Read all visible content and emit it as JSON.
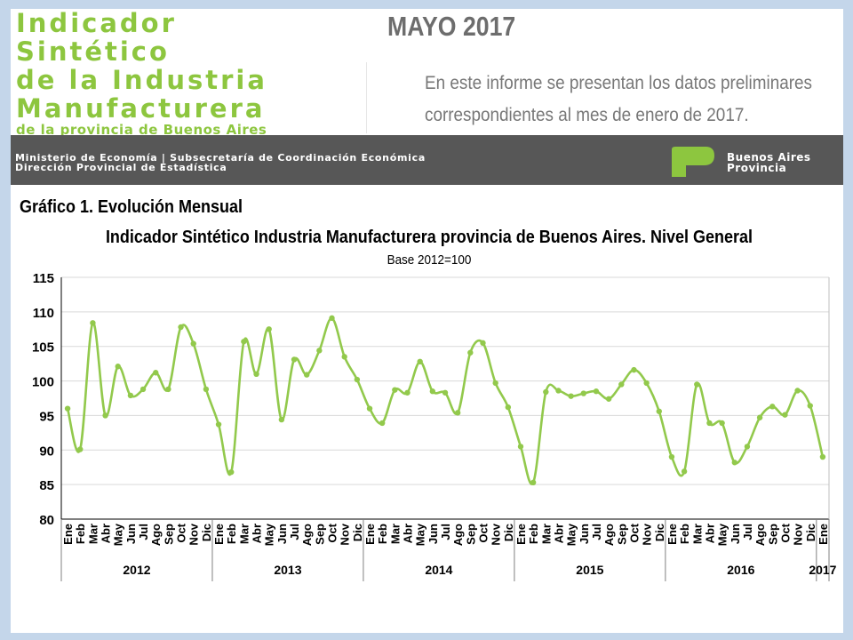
{
  "header": {
    "title_lines": [
      "Indicador",
      "Sintético",
      "de la Industria",
      "Manufacturera"
    ],
    "title_sub": "de la provincia de Buenos  Aires",
    "date": "MAYO 2017",
    "intro_lines": [
      "En este informe se presentan los datos preliminares",
      "correspondientes al mes de enero de 2017."
    ]
  },
  "band": {
    "line1": "Ministerio de Economía | Subsecretaría de Coordinación Económica",
    "line2": "Dirección Provincial de Estadística",
    "logo_line1": "Buenos Aires",
    "logo_line2": "Provincia"
  },
  "colors": {
    "accent_green": "#8dc63f",
    "series_line": "#92c94c",
    "band": "#575757",
    "frame": "#c4d6ea"
  },
  "chart_caption": "Gráfico 1. Evolución Mensual",
  "chart_data": {
    "type": "line",
    "title": "Indicador Sintético Industria Manufacturera provincia de Buenos Aires. Nivel General",
    "subtitle": "Base 2012=100",
    "xlabel": "",
    "ylabel": "",
    "ylim": [
      80,
      115
    ],
    "yticks": [
      80,
      85,
      90,
      95,
      100,
      105,
      110,
      115
    ],
    "grid": true,
    "legend": "none",
    "months": [
      "Ene",
      "Feb",
      "Mar",
      "Abr",
      "May",
      "Jun",
      "Jul",
      "Ago",
      "Sep",
      "Oct",
      "Nov",
      "Dic"
    ],
    "years": [
      "2012",
      "2013",
      "2014",
      "2015",
      "2016",
      "2017"
    ],
    "x": [
      "Ene 2012",
      "Feb 2012",
      "Mar 2012",
      "Abr 2012",
      "May 2012",
      "Jun 2012",
      "Jul 2012",
      "Ago 2012",
      "Sep 2012",
      "Oct 2012",
      "Nov 2012",
      "Dic 2012",
      "Ene 2013",
      "Feb 2013",
      "Mar 2013",
      "Abr 2013",
      "May 2013",
      "Jun 2013",
      "Jul 2013",
      "Ago 2013",
      "Sep 2013",
      "Oct 2013",
      "Nov 2013",
      "Dic 2013",
      "Ene 2014",
      "Feb 2014",
      "Mar 2014",
      "Abr 2014",
      "May 2014",
      "Jun 2014",
      "Jul 2014",
      "Ago 2014",
      "Sep 2014",
      "Oct 2014",
      "Nov 2014",
      "Dic 2014",
      "Ene 2015",
      "Feb 2015",
      "Mar 2015",
      "Abr 2015",
      "May 2015",
      "Jun 2015",
      "Jul 2015",
      "Ago 2015",
      "Sep 2015",
      "Oct 2015",
      "Nov 2015",
      "Dic 2015",
      "Ene 2016",
      "Feb 2016",
      "Mar 2016",
      "Abr 2016",
      "May 2016",
      "Jun 2016",
      "Jul 2016",
      "Ago 2016",
      "Sep 2016",
      "Oct 2016",
      "Nov 2016",
      "Dic 2016",
      "Ene 2017"
    ],
    "values": [
      96.0,
      90.1,
      108.4,
      95.0,
      102.1,
      97.9,
      98.8,
      101.2,
      98.8,
      107.8,
      105.4,
      98.8,
      93.7,
      86.8,
      105.7,
      101.0,
      107.5,
      94.4,
      103.1,
      100.9,
      104.4,
      109.1,
      103.5,
      100.2,
      96.0,
      93.9,
      98.7,
      98.3,
      102.8,
      98.5,
      98.3,
      95.4,
      104.1,
      105.5,
      99.7,
      96.2,
      90.5,
      85.3,
      98.4,
      98.6,
      97.8,
      98.2,
      98.5,
      97.4,
      99.5,
      101.6,
      99.7,
      95.6,
      89.0,
      86.9,
      99.5,
      93.9,
      93.9,
      88.2,
      90.5,
      94.7,
      96.3,
      95.1,
      98.6,
      96.4,
      89.0
    ]
  }
}
